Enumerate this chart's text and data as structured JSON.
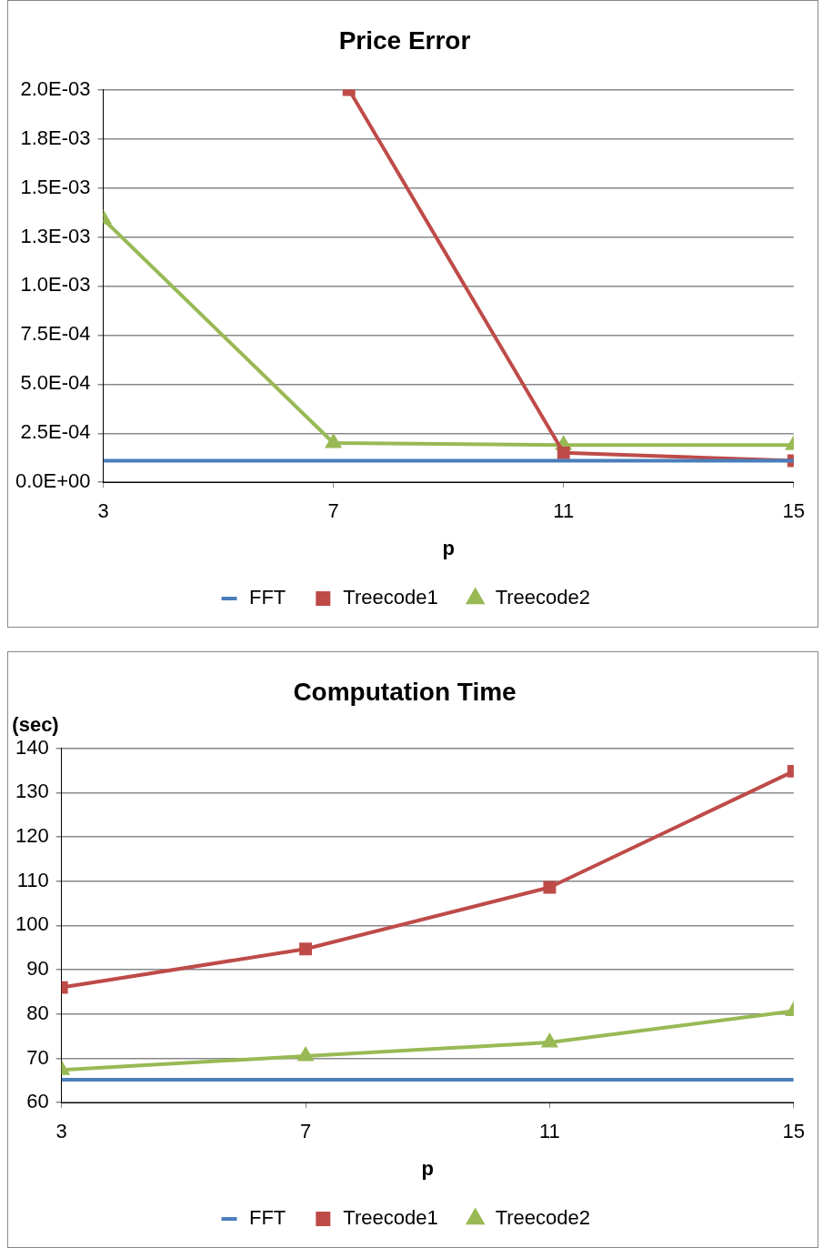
{
  "chart_data": [
    {
      "type": "line",
      "title": "Price Error",
      "xlabel": "p",
      "x": [
        3,
        7,
        11,
        15
      ],
      "xlim": [
        3,
        15
      ],
      "xticks": [
        3,
        7,
        11,
        15
      ],
      "ylim": [
        0,
        0.002
      ],
      "yticks": [
        {
          "value": 0,
          "label": "0.0E+00"
        },
        {
          "value": 0.00025,
          "label": "2.5E-04"
        },
        {
          "value": 0.0005,
          "label": "5.0E-04"
        },
        {
          "value": 0.00075,
          "label": "7.5E-04"
        },
        {
          "value": 0.001,
          "label": "1.0E-03"
        },
        {
          "value": 0.00125,
          "label": "1.3E-03"
        },
        {
          "value": 0.0015,
          "label": "1.5E-03"
        },
        {
          "value": 0.00175,
          "label": "1.8E-03"
        },
        {
          "value": 0.002,
          "label": "2.0E-03"
        }
      ],
      "grid": "y",
      "legend": "bottom",
      "line_style": "solid",
      "series": [
        {
          "name": "FFT",
          "color": "#4a7ebb",
          "marker": "none",
          "values": [
            0.00011,
            0.00011,
            0.00011,
            0.00011
          ]
        },
        {
          "name": "Treecode1",
          "color": "#be4b48",
          "marker": "square",
          "x": [
            7.27,
            11,
            15
          ],
          "values": [
            0.002,
            0.00015,
            0.00011
          ]
        },
        {
          "name": "Treecode2",
          "color": "#98b954",
          "marker": "triangle",
          "values": [
            0.00134,
            0.0002,
            0.00019,
            0.00019
          ]
        }
      ]
    },
    {
      "type": "line",
      "title": "Computation Time",
      "xlabel": "p",
      "ylabel": "(sec)",
      "x": [
        3,
        7,
        11,
        15
      ],
      "xlim": [
        3,
        15
      ],
      "xticks": [
        3,
        7,
        11,
        15
      ],
      "ylim": [
        60,
        140
      ],
      "yticks": [
        60,
        70,
        80,
        90,
        100,
        110,
        120,
        130,
        140
      ],
      "grid": "y",
      "legend": "bottom",
      "line_style": "solid",
      "series": [
        {
          "name": "FFT",
          "color": "#4a7ebb",
          "marker": "none",
          "values": [
            65.2,
            65.2,
            65.2,
            65.2
          ]
        },
        {
          "name": "Treecode1",
          "color": "#be4b48",
          "marker": "square",
          "values": [
            86,
            94.7,
            108.6,
            134.8
          ]
        },
        {
          "name": "Treecode2",
          "color": "#98b954",
          "marker": "triangle",
          "values": [
            67.4,
            70.5,
            73.6,
            80.7
          ]
        }
      ]
    }
  ]
}
